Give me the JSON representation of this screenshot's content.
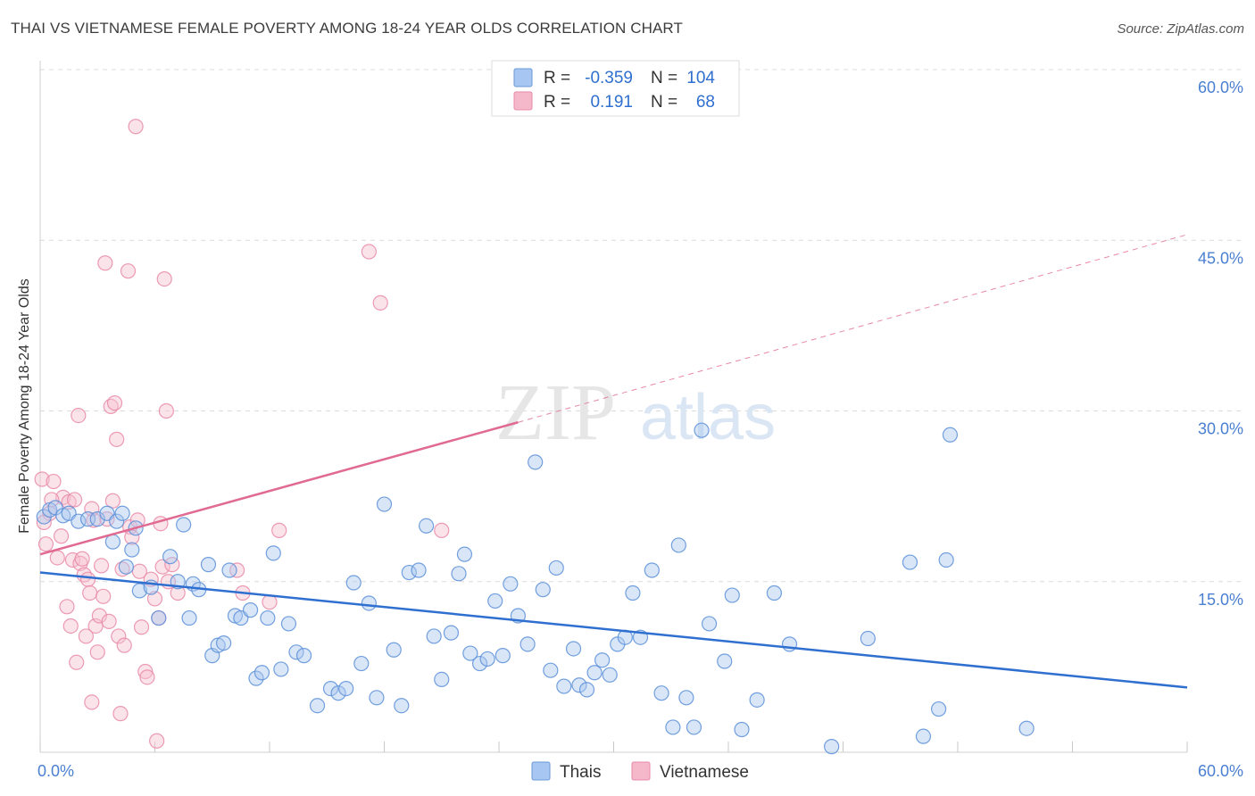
{
  "header": {
    "title": "THAI VS VIETNAMESE FEMALE POVERTY AMONG 18-24 YEAR OLDS CORRELATION CHART",
    "source": "Source: ZipAtlas.com"
  },
  "watermark": {
    "zip": "ZIP",
    "atlas": "atlas"
  },
  "legend_top": {
    "rows": [
      {
        "r_label": "R =",
        "r_value": "-0.359",
        "n_label": "N =",
        "n_value": "104",
        "color": "#a7c7f2"
      },
      {
        "r_label": "R =",
        "r_value": "0.191",
        "n_label": "N =",
        "n_value": "68",
        "color": "#f5b8ca"
      }
    ]
  },
  "chart_data": {
    "type": "scatter",
    "ylabel": "Female Poverty Among 18-24 Year Olds",
    "x_axis": {
      "min": 0,
      "max": 60,
      "tick_labels": [
        "0.0%",
        "60.0%"
      ]
    },
    "y_axis": {
      "min": 0,
      "max": 60,
      "gridlines": [
        15,
        30,
        45,
        60
      ],
      "tick_labels": [
        "15.0%",
        "30.0%",
        "45.0%",
        "60.0%"
      ]
    },
    "colors": {
      "thai": "#5b8fd8",
      "thai_fill": "#aac8f0",
      "viet": "#e98aa8",
      "viet_fill": "#f6c0d1",
      "thai_line": "#2f6fcf",
      "viet_line": "#e06a92",
      "tick_label": "#4a7fd1"
    },
    "series": [
      {
        "name": "Thais",
        "trend": {
          "x0": 0,
          "y0": 15.8,
          "x1": 60,
          "y1": 5.7
        },
        "points": [
          [
            0.2,
            20.7
          ],
          [
            0.5,
            21.3
          ],
          [
            0.8,
            21.5
          ],
          [
            1.2,
            20.8
          ],
          [
            1.5,
            21.0
          ],
          [
            2.0,
            20.3
          ],
          [
            2.5,
            20.5
          ],
          [
            3.0,
            20.5
          ],
          [
            3.5,
            21.0
          ],
          [
            4.0,
            20.3
          ],
          [
            3.8,
            18.5
          ],
          [
            4.3,
            21.0
          ],
          [
            4.5,
            16.3
          ],
          [
            4.8,
            17.8
          ],
          [
            5.0,
            19.7
          ],
          [
            5.2,
            14.2
          ],
          [
            5.8,
            14.5
          ],
          [
            6.2,
            11.8
          ],
          [
            6.8,
            17.2
          ],
          [
            7.2,
            15.0
          ],
          [
            7.5,
            20.0
          ],
          [
            7.8,
            11.8
          ],
          [
            8.0,
            14.8
          ],
          [
            8.3,
            14.3
          ],
          [
            8.8,
            16.5
          ],
          [
            9.0,
            8.5
          ],
          [
            9.3,
            9.4
          ],
          [
            9.6,
            9.6
          ],
          [
            9.9,
            16.0
          ],
          [
            10.2,
            12.0
          ],
          [
            10.5,
            11.8
          ],
          [
            11.0,
            12.5
          ],
          [
            11.3,
            6.5
          ],
          [
            11.6,
            7.0
          ],
          [
            11.9,
            11.8
          ],
          [
            12.2,
            17.5
          ],
          [
            12.6,
            7.3
          ],
          [
            13.0,
            11.3
          ],
          [
            13.4,
            8.8
          ],
          [
            13.8,
            8.5
          ],
          [
            14.5,
            4.1
          ],
          [
            15.2,
            5.6
          ],
          [
            15.6,
            5.2
          ],
          [
            16.0,
            5.6
          ],
          [
            16.4,
            14.9
          ],
          [
            16.8,
            7.8
          ],
          [
            17.2,
            13.1
          ],
          [
            17.6,
            4.8
          ],
          [
            18.0,
            21.8
          ],
          [
            18.5,
            9.0
          ],
          [
            18.9,
            4.1
          ],
          [
            19.3,
            15.8
          ],
          [
            19.8,
            16.0
          ],
          [
            20.2,
            19.9
          ],
          [
            20.6,
            10.2
          ],
          [
            21.0,
            6.4
          ],
          [
            21.5,
            10.5
          ],
          [
            21.9,
            15.7
          ],
          [
            22.2,
            17.4
          ],
          [
            22.5,
            8.7
          ],
          [
            23.0,
            7.8
          ],
          [
            23.4,
            8.2
          ],
          [
            23.8,
            13.3
          ],
          [
            24.2,
            8.5
          ],
          [
            24.6,
            14.8
          ],
          [
            25.0,
            12.0
          ],
          [
            25.5,
            9.5
          ],
          [
            25.9,
            25.5
          ],
          [
            26.3,
            14.3
          ],
          [
            26.7,
            7.2
          ],
          [
            27.0,
            16.2
          ],
          [
            27.4,
            5.8
          ],
          [
            27.9,
            9.1
          ],
          [
            28.2,
            5.9
          ],
          [
            28.6,
            5.5
          ],
          [
            29.0,
            7.0
          ],
          [
            29.4,
            8.1
          ],
          [
            29.8,
            6.8
          ],
          [
            30.2,
            9.5
          ],
          [
            30.6,
            10.1
          ],
          [
            31.0,
            14.0
          ],
          [
            31.4,
            10.1
          ],
          [
            32.0,
            16.0
          ],
          [
            32.5,
            5.2
          ],
          [
            33.1,
            2.2
          ],
          [
            33.4,
            18.2
          ],
          [
            33.8,
            4.8
          ],
          [
            34.2,
            2.2
          ],
          [
            34.6,
            28.3
          ],
          [
            35.0,
            11.3
          ],
          [
            35.8,
            8.0
          ],
          [
            36.2,
            13.8
          ],
          [
            36.7,
            2.0
          ],
          [
            37.5,
            4.6
          ],
          [
            38.4,
            14.0
          ],
          [
            39.2,
            9.5
          ],
          [
            41.4,
            0.5
          ],
          [
            43.3,
            10.0
          ],
          [
            45.5,
            16.7
          ],
          [
            46.2,
            1.4
          ],
          [
            47.0,
            3.8
          ],
          [
            47.4,
            16.9
          ],
          [
            47.6,
            27.9
          ],
          [
            51.6,
            2.1
          ]
        ]
      },
      {
        "name": "Vietnamese",
        "trend": {
          "x0": 0,
          "y0": 17.4,
          "x1": 25,
          "y1": 29.0,
          "dash_to_x": 60,
          "dash_to_y": 45.5
        },
        "points": [
          [
            0.1,
            24.0
          ],
          [
            0.3,
            18.3
          ],
          [
            0.5,
            21.0
          ],
          [
            0.7,
            23.8
          ],
          [
            0.9,
            17.1
          ],
          [
            1.1,
            19.0
          ],
          [
            1.2,
            22.4
          ],
          [
            1.4,
            12.8
          ],
          [
            1.5,
            22.0
          ],
          [
            1.6,
            11.1
          ],
          [
            1.7,
            16.9
          ],
          [
            1.8,
            22.2
          ],
          [
            1.9,
            7.9
          ],
          [
            2.0,
            29.6
          ],
          [
            2.1,
            16.6
          ],
          [
            2.2,
            17.0
          ],
          [
            2.3,
            15.6
          ],
          [
            2.4,
            10.2
          ],
          [
            2.5,
            15.2
          ],
          [
            2.6,
            14.0
          ],
          [
            2.7,
            4.4
          ],
          [
            2.8,
            20.4
          ],
          [
            2.9,
            11.1
          ],
          [
            3.0,
            8.8
          ],
          [
            3.1,
            12.0
          ],
          [
            3.2,
            16.4
          ],
          [
            3.3,
            13.7
          ],
          [
            3.4,
            43.0
          ],
          [
            3.5,
            20.5
          ],
          [
            3.6,
            11.5
          ],
          [
            3.7,
            30.4
          ],
          [
            3.8,
            22.1
          ],
          [
            3.9,
            30.7
          ],
          [
            4.0,
            27.5
          ],
          [
            4.1,
            10.2
          ],
          [
            4.2,
            3.4
          ],
          [
            4.3,
            16.1
          ],
          [
            4.4,
            9.4
          ],
          [
            4.6,
            42.3
          ],
          [
            4.7,
            19.8
          ],
          [
            4.8,
            18.9
          ],
          [
            5.0,
            55.0
          ],
          [
            5.1,
            20.4
          ],
          [
            5.2,
            15.9
          ],
          [
            5.3,
            11.0
          ],
          [
            5.5,
            7.1
          ],
          [
            5.6,
            6.6
          ],
          [
            5.8,
            15.2
          ],
          [
            6.0,
            13.5
          ],
          [
            6.1,
            1.0
          ],
          [
            6.2,
            11.8
          ],
          [
            6.3,
            20.1
          ],
          [
            6.4,
            16.3
          ],
          [
            6.5,
            41.6
          ],
          [
            6.6,
            30.0
          ],
          [
            6.7,
            15.0
          ],
          [
            6.9,
            16.5
          ],
          [
            7.2,
            14.0
          ],
          [
            10.3,
            16.0
          ],
          [
            10.6,
            14.0
          ],
          [
            12.0,
            13.2
          ],
          [
            12.5,
            19.5
          ],
          [
            17.2,
            44.0
          ],
          [
            17.8,
            39.5
          ],
          [
            21.0,
            19.5
          ],
          [
            0.6,
            22.2
          ],
          [
            2.7,
            21.4
          ],
          [
            0.2,
            20.2
          ]
        ]
      }
    ]
  },
  "legend_bottom": {
    "items": [
      {
        "label": "Thais",
        "color": "#a7c7f2"
      },
      {
        "label": "Vietnamese",
        "color": "#f5b8ca"
      }
    ]
  }
}
